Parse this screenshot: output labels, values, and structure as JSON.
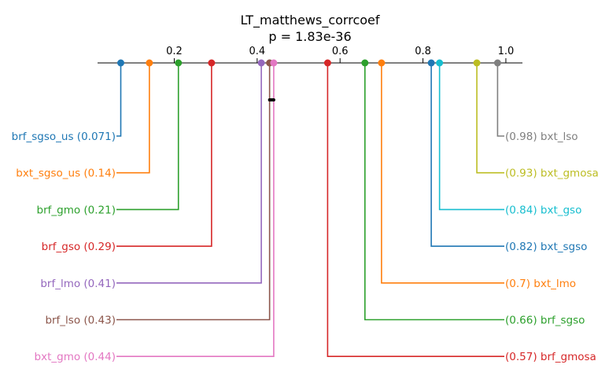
{
  "chart_data": {
    "type": "critical-difference",
    "title": "LT_matthews_corrcoef",
    "subtitle": "p = 1.83e-36",
    "xlim": [
      0.015,
      1.04
    ],
    "x_ticks": [
      0.2,
      0.4,
      0.6,
      0.8,
      1.0
    ],
    "x_tick_labels": [
      "0.2",
      "0.4",
      "0.6",
      "0.8",
      "1.0"
    ],
    "cliques": [
      {
        "from": 0.43,
        "to": 0.44
      }
    ],
    "left": [
      {
        "name": "brf_sgso_us",
        "value": 0.071,
        "label": "brf_sgso_us (0.071)",
        "color": "#1f77b4"
      },
      {
        "name": "bxt_sgso_us",
        "value": 0.14,
        "label": "bxt_sgso_us (0.14)",
        "color": "#ff7f0e"
      },
      {
        "name": "brf_gmo",
        "value": 0.21,
        "label": "brf_gmo (0.21)",
        "color": "#2ca02c"
      },
      {
        "name": "brf_gso",
        "value": 0.29,
        "label": "brf_gso (0.29)",
        "color": "#d62728"
      },
      {
        "name": "brf_lmo",
        "value": 0.41,
        "label": "brf_lmo (0.41)",
        "color": "#9467bd"
      },
      {
        "name": "brf_lso",
        "value": 0.43,
        "label": "brf_lso (0.43)",
        "color": "#8c564b"
      },
      {
        "name": "bxt_gmo",
        "value": 0.44,
        "label": "bxt_gmo (0.44)",
        "color": "#e377c2"
      }
    ],
    "right": [
      {
        "name": "bxt_lso",
        "value": 0.98,
        "label": "(0.98) bxt_lso",
        "color": "#7f7f7f"
      },
      {
        "name": "bxt_gmosa",
        "value": 0.93,
        "label": "(0.93) bxt_gmosa",
        "color": "#bcbd22"
      },
      {
        "name": "bxt_gso",
        "value": 0.84,
        "label": "(0.84) bxt_gso",
        "color": "#17becf"
      },
      {
        "name": "bxt_sgso",
        "value": 0.82,
        "label": "(0.82) bxt_sgso",
        "color": "#1f77b4"
      },
      {
        "name": "bxt_lmo",
        "value": 0.7,
        "label": "(0.7) bxt_lmo",
        "color": "#ff7f0e"
      },
      {
        "name": "brf_sgso",
        "value": 0.66,
        "label": "(0.66) brf_sgso",
        "color": "#2ca02c"
      },
      {
        "name": "brf_gmosa",
        "value": 0.57,
        "label": "(0.57) brf_gmosa",
        "color": "#d62728"
      }
    ]
  }
}
